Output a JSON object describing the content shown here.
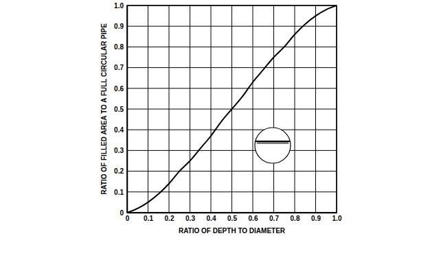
{
  "chart_data": {
    "type": "line",
    "x_label": "RATIO OF DEPTH TO DIAMETER",
    "y_label": "RATIO OF FILLED AREA TO A FULL CIRCULAR PIPE",
    "x": [
      0,
      0.05,
      0.1,
      0.15,
      0.2,
      0.25,
      0.3,
      0.35,
      0.4,
      0.45,
      0.5,
      0.55,
      0.6,
      0.65,
      0.7,
      0.75,
      0.8,
      0.85,
      0.9,
      0.95,
      1.0
    ],
    "values": [
      0,
      0.02,
      0.05,
      0.09,
      0.14,
      0.2,
      0.25,
      0.31,
      0.37,
      0.44,
      0.5,
      0.56,
      0.63,
      0.69,
      0.75,
      0.8,
      0.86,
      0.91,
      0.95,
      0.98,
      1.0
    ],
    "color": "#000000",
    "xlim": [
      0,
      1
    ],
    "ylim": [
      0,
      1
    ],
    "xticks": [
      0,
      0.1,
      0.2,
      0.3,
      0.4,
      0.5,
      0.6,
      0.7,
      0.8,
      0.9,
      {
        "value": 1,
        "label": "1.0"
      }
    ],
    "yticks": [
      0,
      0.1,
      0.2,
      0.3,
      0.4,
      0.5,
      0.6,
      0.7,
      0.8,
      0.9,
      {
        "value": 1,
        "label": "1.0"
      }
    ],
    "grid": true
  }
}
